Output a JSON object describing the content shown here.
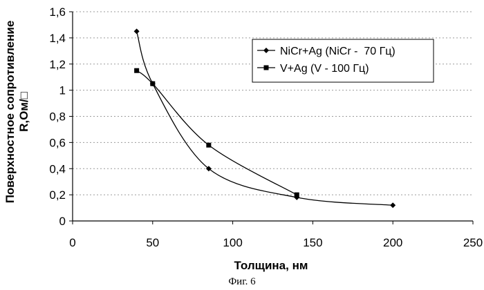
{
  "chart_data": {
    "type": "line",
    "xlabel": "Толщина, нм",
    "ylabel_line1": "Поверхностное сопротивление",
    "ylabel_line2": "R,Ом/□",
    "xlim": [
      0,
      250
    ],
    "ylim": [
      0,
      1.6
    ],
    "xticks": [
      0,
      50,
      100,
      150,
      200,
      250
    ],
    "yticks": [
      "0",
      "0,2",
      "0,4",
      "0,6",
      "0,8",
      "1",
      "1,2",
      "1,4",
      "1,6"
    ],
    "grid": "horizontal-dashed",
    "legend_position": "top-right",
    "series": [
      {
        "name": "NiCr+Ag (NiCr -  70 Гц)",
        "marker": "diamond",
        "color": "#000000",
        "x": [
          40,
          50,
          85,
          140,
          200
        ],
        "y": [
          1.45,
          1.05,
          0.4,
          0.18,
          0.12
        ]
      },
      {
        "name": "V+Ag (V - 100 Гц)",
        "marker": "square",
        "color": "#000000",
        "x": [
          40,
          50,
          85,
          140
        ],
        "y": [
          1.15,
          1.05,
          0.58,
          0.2
        ]
      }
    ]
  },
  "caption": "Фиг. 6"
}
